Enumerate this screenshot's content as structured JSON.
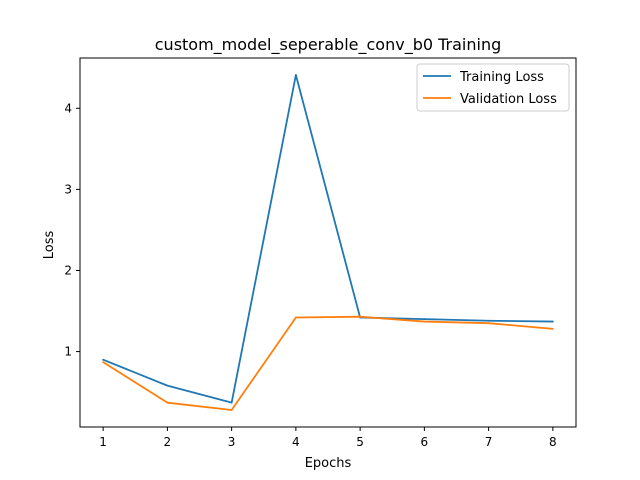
{
  "chart_data": {
    "type": "line",
    "title": "custom_model_seperable_conv_b0 Training",
    "xlabel": "Epochs",
    "ylabel": "Loss",
    "x": [
      1,
      2,
      3,
      4,
      5,
      6,
      7,
      8
    ],
    "xlim": [
      0.64,
      8.36
    ],
    "ylim": [
      0.07,
      4.62
    ],
    "xticks": [
      1,
      2,
      3,
      4,
      5,
      6,
      7,
      8
    ],
    "yticks": [
      1,
      2,
      3,
      4
    ],
    "grid": false,
    "legend_position": "top-right",
    "series": [
      {
        "name": "Training Loss",
        "color": "#1f77b4",
        "values": [
          0.9,
          0.58,
          0.37,
          4.41,
          1.42,
          1.4,
          1.38,
          1.37
        ]
      },
      {
        "name": "Validation Loss",
        "color": "#ff7f0e",
        "values": [
          0.87,
          0.37,
          0.28,
          1.42,
          1.43,
          1.37,
          1.35,
          1.28
        ]
      }
    ]
  }
}
